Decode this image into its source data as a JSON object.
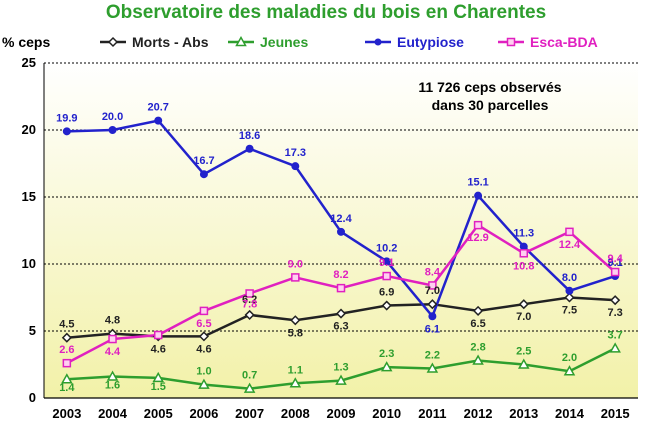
{
  "chart_data": {
    "type": "line",
    "title": "Observatoire des maladies du bois en Charentes",
    "ylabel": "% ceps",
    "xlabel": "",
    "ylim": [
      0,
      25
    ],
    "yticks": [
      0,
      5,
      10,
      15,
      20,
      25
    ],
    "grid": true,
    "legend_position": "top",
    "annotation": [
      "11 726 ceps observés",
      "dans 30 parcelles"
    ],
    "x": [
      "2003",
      "2004",
      "2005",
      "2006",
      "2007",
      "2008",
      "2009",
      "2010",
      "2011",
      "2012",
      "2013",
      "2014",
      "2015"
    ],
    "series": [
      {
        "name": "Morts - Abs",
        "color": "#222222",
        "marker": "diamond",
        "values": [
          4.5,
          4.8,
          4.6,
          4.6,
          6.2,
          5.8,
          6.3,
          6.9,
          7.0,
          6.5,
          7.0,
          7.5,
          7.3
        ],
        "labels": [
          "4.5",
          "4.8",
          "4.6",
          "4.6",
          "6.2",
          "5.8",
          "6.3",
          "6.9",
          "7.0",
          "6.5",
          "7.0",
          "7.5",
          "7.3"
        ]
      },
      {
        "name": "Jeunes",
        "color": "#2e9e2e",
        "marker": "triangle",
        "values": [
          1.4,
          1.6,
          1.5,
          1.0,
          0.7,
          1.1,
          1.3,
          2.3,
          2.2,
          2.8,
          2.5,
          2.0,
          3.7
        ],
        "labels": [
          "1.4",
          "1.6",
          "1.5",
          "1.0",
          "0.7",
          "1.1",
          "1.3",
          "2.3",
          "2.2",
          "2.8",
          "2.5",
          "2.0",
          "3.7"
        ]
      },
      {
        "name": "Eutypiose",
        "color": "#2222cc",
        "marker": "circle",
        "values": [
          19.9,
          20.0,
          20.7,
          16.7,
          18.6,
          17.3,
          12.4,
          10.2,
          6.1,
          15.1,
          11.3,
          8.0,
          9.1
        ],
        "labels": [
          "19.9",
          "20.0",
          "20.7",
          "16.7",
          "18.6",
          "17.3",
          "12.4",
          "10.2",
          "6.1",
          "15.1",
          "11.3",
          "8.0",
          "9.1"
        ]
      },
      {
        "name": "Esca-BDA",
        "color": "#e020c0",
        "marker": "square",
        "values": [
          2.6,
          4.4,
          4.7,
          6.5,
          7.8,
          9.0,
          8.2,
          9.1,
          8.4,
          12.9,
          10.8,
          12.4,
          9.4
        ],
        "labels": [
          "2.6",
          "4.4",
          "",
          "6.5",
          "7.8",
          "9.0",
          "8.2",
          "9.1",
          "8.4",
          "12.9",
          "10.8",
          "12.4",
          "9.4"
        ]
      }
    ],
    "colors": {
      "plot_background_top": "#ffffff",
      "plot_background_bottom": "#f2f1a8",
      "gridline": "#000000",
      "title": "#2e9e2e"
    }
  }
}
